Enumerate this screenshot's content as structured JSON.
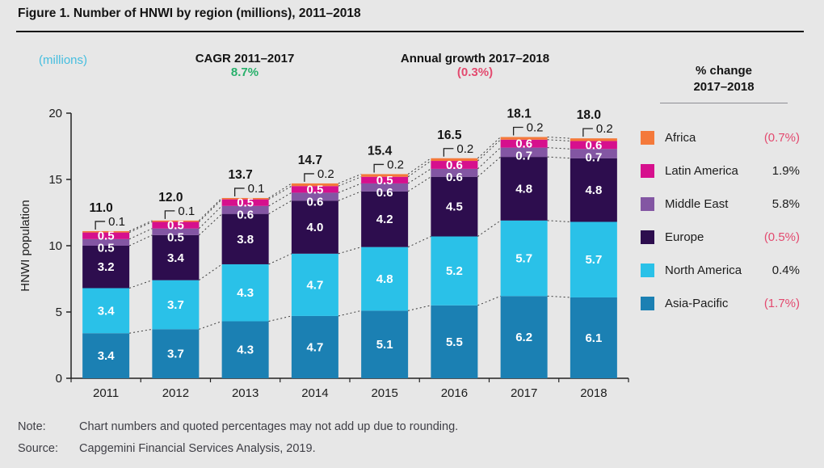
{
  "figure_title": "Figure 1. Number of HNWI by region (millions), 2011–2018",
  "header": {
    "units_label": "(millions)",
    "cagr_label": "CAGR 2011–2017",
    "cagr_value": "8.7%",
    "growth_label": "Annual growth 2017–2018",
    "growth_value": "(0.3%)"
  },
  "chart_data": {
    "type": "bar",
    "stacked": true,
    "title": "Number of HNWI by region (millions), 2011–2018",
    "ylabel": "HNWI population",
    "xlabel": "",
    "ylim": [
      0,
      20
    ],
    "yticks": [
      0,
      5,
      10,
      15,
      20
    ],
    "grid": false,
    "legend_position": "right",
    "categories": [
      "2011",
      "2012",
      "2013",
      "2014",
      "2015",
      "2016",
      "2017",
      "2018"
    ],
    "series": [
      {
        "name": "Asia-Pacific",
        "color": "#1b80b3",
        "values": [
          3.4,
          3.7,
          4.3,
          4.7,
          5.1,
          5.5,
          6.2,
          6.1
        ]
      },
      {
        "name": "North America",
        "color": "#2ac1e8",
        "values": [
          3.4,
          3.7,
          4.3,
          4.7,
          4.8,
          5.2,
          5.7,
          5.7
        ]
      },
      {
        "name": "Europe",
        "color": "#2d0d4e",
        "values": [
          3.2,
          3.4,
          3.8,
          4.0,
          4.2,
          4.5,
          4.8,
          4.8
        ]
      },
      {
        "name": "Middle East",
        "color": "#8356a3",
        "values": [
          0.5,
          0.5,
          0.6,
          0.6,
          0.6,
          0.6,
          0.7,
          0.7
        ]
      },
      {
        "name": "Latin America",
        "color": "#d6108d",
        "values": [
          0.5,
          0.5,
          0.5,
          0.5,
          0.5,
          0.6,
          0.6,
          0.6
        ]
      },
      {
        "name": "Africa",
        "color": "#f4793b",
        "values": [
          0.1,
          0.1,
          0.1,
          0.2,
          0.2,
          0.2,
          0.2,
          0.2
        ]
      }
    ],
    "totals": [
      "11.0",
      "12.0",
      "13.7",
      "14.7",
      "15.4",
      "16.5",
      "18.1",
      "18.0"
    ],
    "africa_callouts": [
      "0.1",
      "0.1",
      "0.1",
      "0.2",
      "0.2",
      "0.2",
      "0.2",
      "0.2"
    ]
  },
  "legend": {
    "title_line1": "% change",
    "title_line2": "2017–2018",
    "items": [
      {
        "name": "Africa",
        "value": "(0.7%)",
        "color": "#f4793b"
      },
      {
        "name": "Latin America",
        "value": "1.9%",
        "color": "#d6108d"
      },
      {
        "name": "Middle East",
        "value": "5.8%",
        "color": "#8356a3"
      },
      {
        "name": "Europe",
        "value": "(0.5%)",
        "color": "#2d0d4e"
      },
      {
        "name": "North America",
        "value": "0.4%",
        "color": "#2ac1e8"
      },
      {
        "name": "Asia-Pacific",
        "value": "(1.7%)",
        "color": "#1b80b3"
      }
    ]
  },
  "footer": {
    "note_label": "Note:",
    "note_text": "Chart numbers and quoted percentages may not add up due to rounding.",
    "source_label": "Source:",
    "source_text": "Capgemini Financial Services Analysis, 2019."
  },
  "colors": {
    "background": "#e7e7e7",
    "title_rule": "#141414",
    "units_cyan": "#45bedf",
    "cagr_green": "#27b06a",
    "negative_pink": "#e34a6f",
    "axis": "#222222",
    "bar_label": "#ffffff"
  }
}
